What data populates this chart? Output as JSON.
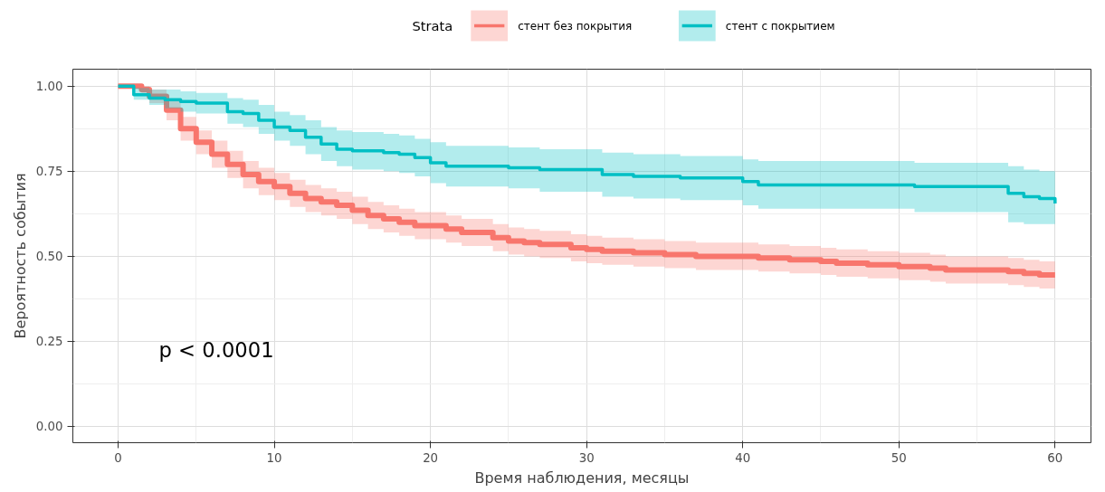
{
  "chart_data": {
    "type": "step",
    "xlabel": "Время наблюдения, месяцы",
    "ylabel": "Вероятность события",
    "legend_title": "Strata",
    "legend": "top",
    "grid": true,
    "xlim": [
      -2.9,
      62.3
    ],
    "ylim": [
      -0.048,
      1.05
    ],
    "xticks": [
      0,
      10,
      20,
      30,
      40,
      50,
      60
    ],
    "yticks": [
      {
        "value": 0,
        "label": "0.00"
      },
      {
        "value": 0.25,
        "label": "0.25"
      },
      {
        "value": 0.5,
        "label": "0.50"
      },
      {
        "value": 0.75,
        "label": "0.75"
      },
      {
        "value": 1,
        "label": "1.00"
      }
    ],
    "annotations": [
      "p < 0.0001"
    ],
    "series": [
      {
        "name": "стент без покрытия",
        "color": "#f8766d",
        "x": [
          0,
          1.5,
          2,
          3.1,
          4,
          5,
          6,
          7,
          8,
          9,
          10,
          11,
          12,
          13,
          14,
          15,
          16,
          17,
          18,
          19,
          21,
          22,
          24,
          25,
          26,
          27,
          29,
          30,
          31,
          33,
          35,
          37,
          41,
          43,
          45,
          46,
          48,
          50,
          52,
          53,
          57,
          58,
          59,
          60
        ],
        "values": [
          1.0,
          0.99,
          0.97,
          0.93,
          0.875,
          0.835,
          0.8,
          0.77,
          0.74,
          0.72,
          0.705,
          0.685,
          0.67,
          0.66,
          0.65,
          0.635,
          0.62,
          0.61,
          0.6,
          0.59,
          0.58,
          0.57,
          0.555,
          0.545,
          0.54,
          0.535,
          0.525,
          0.52,
          0.515,
          0.51,
          0.505,
          0.5,
          0.495,
          0.49,
          0.485,
          0.48,
          0.475,
          0.47,
          0.465,
          0.46,
          0.455,
          0.45,
          0.445,
          0.445
        ],
        "lower": [
          1.0,
          0.98,
          0.95,
          0.9,
          0.84,
          0.8,
          0.76,
          0.73,
          0.7,
          0.68,
          0.665,
          0.645,
          0.63,
          0.62,
          0.61,
          0.595,
          0.58,
          0.57,
          0.56,
          0.55,
          0.54,
          0.53,
          0.515,
          0.505,
          0.5,
          0.495,
          0.485,
          0.48,
          0.475,
          0.47,
          0.465,
          0.46,
          0.455,
          0.45,
          0.445,
          0.44,
          0.435,
          0.43,
          0.425,
          0.42,
          0.415,
          0.41,
          0.405,
          0.405
        ],
        "upper": [
          1.0,
          1.0,
          0.99,
          0.96,
          0.91,
          0.87,
          0.84,
          0.81,
          0.78,
          0.76,
          0.745,
          0.725,
          0.71,
          0.7,
          0.69,
          0.675,
          0.66,
          0.65,
          0.64,
          0.63,
          0.62,
          0.61,
          0.595,
          0.585,
          0.58,
          0.575,
          0.565,
          0.56,
          0.555,
          0.55,
          0.545,
          0.54,
          0.535,
          0.53,
          0.525,
          0.52,
          0.515,
          0.51,
          0.505,
          0.5,
          0.495,
          0.49,
          0.485,
          0.485
        ]
      },
      {
        "name": "стент с покрытием",
        "color": "#00bfc4",
        "x": [
          0,
          1,
          2,
          3,
          4,
          5,
          7,
          8,
          9,
          10,
          11,
          12,
          13,
          14,
          15,
          17,
          18,
          19,
          20,
          21,
          25,
          27,
          31,
          33,
          36,
          40,
          41,
          51,
          57,
          58,
          59,
          60
        ],
        "values": [
          1.0,
          0.975,
          0.965,
          0.96,
          0.955,
          0.95,
          0.925,
          0.92,
          0.9,
          0.88,
          0.87,
          0.85,
          0.83,
          0.815,
          0.81,
          0.805,
          0.8,
          0.79,
          0.775,
          0.765,
          0.76,
          0.755,
          0.74,
          0.735,
          0.73,
          0.72,
          0.71,
          0.705,
          0.685,
          0.675,
          0.67,
          0.655
        ],
        "lower": [
          1.0,
          0.96,
          0.945,
          0.935,
          0.925,
          0.92,
          0.89,
          0.88,
          0.86,
          0.84,
          0.825,
          0.8,
          0.78,
          0.765,
          0.755,
          0.75,
          0.745,
          0.735,
          0.715,
          0.705,
          0.7,
          0.69,
          0.675,
          0.67,
          0.665,
          0.65,
          0.64,
          0.63,
          0.6,
          0.595,
          0.595,
          0.595
        ],
        "upper": [
          1.0,
          0.995,
          0.99,
          0.99,
          0.985,
          0.98,
          0.965,
          0.96,
          0.945,
          0.925,
          0.915,
          0.9,
          0.88,
          0.87,
          0.865,
          0.86,
          0.855,
          0.845,
          0.835,
          0.825,
          0.82,
          0.815,
          0.805,
          0.8,
          0.795,
          0.785,
          0.78,
          0.775,
          0.765,
          0.755,
          0.75,
          0.745
        ]
      }
    ]
  }
}
